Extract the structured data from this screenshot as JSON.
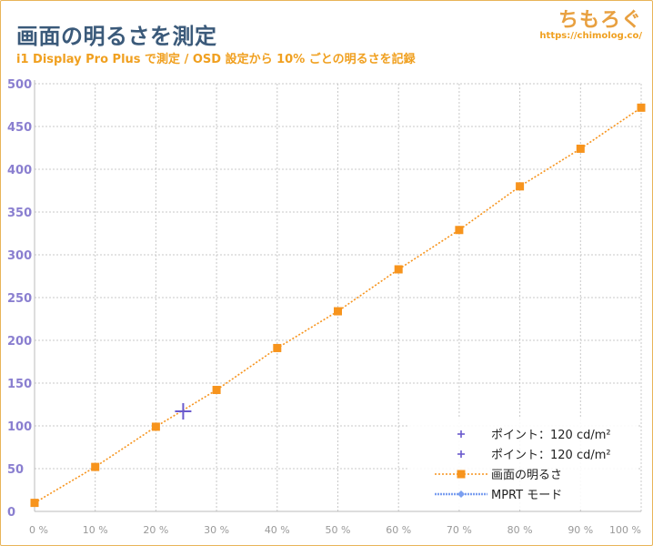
{
  "header": {
    "title": "画面の明るさを測定",
    "subtitle": "i1 Display Pro Plus で測定 / OSD 設定から 10% ごとの明るさを記録",
    "brand_logo": "ちもろぐ",
    "brand_url": "https://chimolog.co/"
  },
  "colors": {
    "main_series": "#f7941d",
    "point_marker": "#6a5acd",
    "mprt": "#7b9ff0",
    "ytick": "#8a7fd0",
    "title": "#3b5a7a",
    "subtitle": "#f0a020"
  },
  "chart_data": {
    "type": "line",
    "title": "画面の明るさを測定",
    "xlabel": "",
    "ylabel": "",
    "xlim": [
      0,
      100
    ],
    "ylim": [
      0,
      500
    ],
    "grid": true,
    "legend_position": "bottom-right",
    "x_tick_labels": [
      "0 %",
      "10 %",
      "20 %",
      "30 %",
      "40 %",
      "50 %",
      "60 %",
      "70 %",
      "80 %",
      "90 %",
      "100 %"
    ],
    "y_tick_labels": [
      "0",
      "50",
      "100",
      "150",
      "200",
      "250",
      "300",
      "350",
      "400",
      "450",
      "500"
    ],
    "series": [
      {
        "name": "画面の明るさ",
        "x": [
          0,
          10,
          20,
          30,
          40,
          50,
          60,
          70,
          80,
          90,
          100
        ],
        "y": [
          10,
          52,
          99,
          142,
          191,
          234,
          283,
          329,
          380,
          424,
          472
        ]
      },
      {
        "name": "ポイント：120 cd/m²",
        "x": [
          24.5
        ],
        "y": [
          117
        ]
      },
      {
        "name": "ポイント：120 cd/m²",
        "x": [],
        "y": []
      },
      {
        "name": "MPRT モード",
        "x": [],
        "y": []
      }
    ]
  }
}
